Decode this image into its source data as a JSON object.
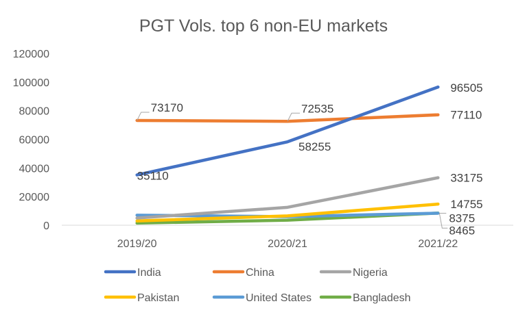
{
  "chart_data": {
    "type": "line",
    "title": "PGT Vols. top 6 non-EU markets",
    "categories": [
      "2019/20",
      "2020/21",
      "2021/22"
    ],
    "ylim": [
      0,
      120000
    ],
    "yticks": [
      0,
      20000,
      40000,
      60000,
      80000,
      100000,
      120000
    ],
    "grid": false,
    "legend_position": "bottom",
    "series": [
      {
        "name": "India",
        "color": "#4472C4",
        "values": [
          35110,
          58255,
          96505
        ],
        "labels": [
          "35110",
          "58255",
          "96505"
        ]
      },
      {
        "name": "China",
        "color": "#ED7D31",
        "values": [
          73170,
          72535,
          77110
        ],
        "labels": [
          "73170",
          "72535",
          "77110"
        ]
      },
      {
        "name": "Nigeria",
        "color": "#A5A5A5",
        "values": [
          5000,
          12500,
          33175
        ],
        "labels": [
          null,
          null,
          "33175"
        ]
      },
      {
        "name": "Pakistan",
        "color": "#FFC000",
        "values": [
          3000,
          6500,
          14755
        ],
        "labels": [
          null,
          null,
          "14755"
        ]
      },
      {
        "name": "United States",
        "color": "#5B9BD5",
        "values": [
          7000,
          6000,
          8375
        ],
        "labels": [
          null,
          null,
          "8375"
        ]
      },
      {
        "name": "Bangladesh",
        "color": "#70AD47",
        "values": [
          1500,
          3500,
          8465
        ],
        "labels": [
          null,
          null,
          "8465"
        ]
      }
    ]
  }
}
